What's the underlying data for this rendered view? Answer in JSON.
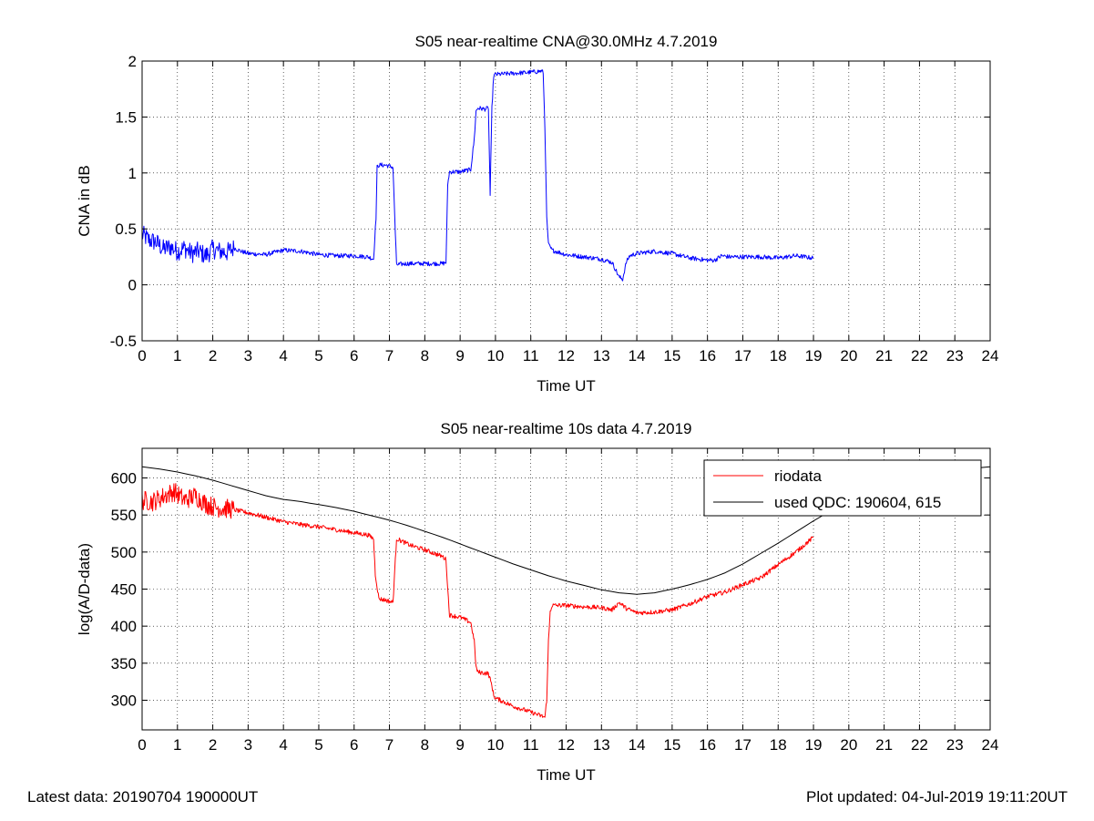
{
  "footer": {
    "latest": "Latest data: 20190704 190000UT",
    "updated": "Plot updated: 04-Jul-2019 19:11:20UT"
  },
  "chart_data": [
    {
      "type": "line",
      "title": "S05 near-realtime CNA@30.0MHz 4.7.2019",
      "xlabel": "Time UT",
      "ylabel": "CNA in dB",
      "xlim": [
        0,
        24
      ],
      "ylim": [
        -0.5,
        2
      ],
      "xticks": [
        0,
        1,
        2,
        3,
        4,
        5,
        6,
        7,
        8,
        9,
        10,
        11,
        12,
        13,
        14,
        15,
        16,
        17,
        18,
        19,
        20,
        21,
        22,
        23,
        24
      ],
      "yticks": [
        -0.5,
        0,
        0.5,
        1,
        1.5,
        2
      ],
      "ytick_labels": [
        "-0.5",
        "0",
        "0.5",
        "1",
        "1.5",
        "2"
      ],
      "grid": true,
      "series": [
        {
          "color": "#0000ff",
          "x": [
            0,
            0.2,
            0.4,
            0.6,
            0.8,
            1.0,
            1.2,
            1.4,
            1.6,
            1.8,
            2.0,
            2.2,
            2.4,
            2.6,
            2.8,
            3.0,
            3.5,
            4.0,
            4.5,
            5.0,
            5.5,
            6.0,
            6.4,
            6.55,
            6.62,
            6.65,
            6.7,
            6.9,
            7.1,
            7.15,
            7.2,
            7.5,
            8.0,
            8.5,
            8.6,
            8.65,
            8.7,
            9.0,
            9.3,
            9.4,
            9.45,
            9.5,
            9.7,
            9.8,
            9.85,
            9.9,
            9.95,
            10.0,
            10.5,
            11.0,
            11.3,
            11.35,
            11.4,
            11.45,
            11.5,
            11.6,
            12.0,
            12.5,
            13.0,
            13.3,
            13.5,
            13.6,
            13.7,
            13.8,
            14.0,
            14.5,
            15.0,
            15.5,
            16.0,
            16.2,
            16.4,
            16.6,
            16.8,
            17.0,
            17.5,
            18.0,
            18.5,
            19.0
          ],
          "y": [
            0.45,
            0.4,
            0.38,
            0.32,
            0.34,
            0.3,
            0.33,
            0.28,
            0.3,
            0.26,
            0.32,
            0.3,
            0.29,
            0.33,
            0.3,
            0.28,
            0.27,
            0.31,
            0.3,
            0.27,
            0.26,
            0.26,
            0.25,
            0.23,
            0.6,
            1.05,
            1.07,
            1.07,
            1.05,
            0.6,
            0.18,
            0.19,
            0.19,
            0.19,
            0.2,
            0.9,
            1.01,
            1.01,
            1.03,
            1.3,
            1.55,
            1.58,
            1.57,
            1.58,
            0.8,
            1.58,
            1.87,
            1.88,
            1.89,
            1.9,
            1.91,
            1.9,
            1.4,
            0.6,
            0.36,
            0.31,
            0.27,
            0.25,
            0.23,
            0.2,
            0.07,
            0.05,
            0.2,
            0.26,
            0.28,
            0.3,
            0.28,
            0.24,
            0.22,
            0.22,
            0.26,
            0.25,
            0.25,
            0.25,
            0.25,
            0.24,
            0.26,
            0.24
          ]
        }
      ]
    },
    {
      "type": "line",
      "title": "S05 near-realtime 10s data 4.7.2019",
      "xlabel": "Time UT",
      "ylabel": "log(A/D-data)",
      "xlim": [
        0,
        24
      ],
      "ylim": [
        260,
        640
      ],
      "xticks": [
        0,
        1,
        2,
        3,
        4,
        5,
        6,
        7,
        8,
        9,
        10,
        11,
        12,
        13,
        14,
        15,
        16,
        17,
        18,
        19,
        20,
        21,
        22,
        23,
        24
      ],
      "yticks": [
        300,
        350,
        400,
        450,
        500,
        550,
        600
      ],
      "ytick_labels": [
        "300",
        "350",
        "400",
        "450",
        "500",
        "550",
        "600"
      ],
      "grid": true,
      "legend": "top-right",
      "series": [
        {
          "name": "riodata",
          "color": "#ff0000",
          "x": [
            0,
            0.3,
            0.6,
            0.9,
            1.2,
            1.5,
            1.8,
            2.1,
            2.5,
            3.0,
            3.5,
            4.0,
            4.5,
            5.0,
            5.5,
            6.0,
            6.4,
            6.55,
            6.6,
            6.7,
            6.9,
            7.1,
            7.15,
            7.2,
            7.6,
            8.0,
            8.5,
            8.6,
            8.65,
            8.7,
            9.0,
            9.3,
            9.4,
            9.45,
            9.5,
            9.8,
            9.9,
            9.95,
            10.0,
            10.5,
            11.0,
            11.4,
            11.45,
            11.5,
            11.55,
            11.6,
            12.0,
            12.5,
            13.0,
            13.3,
            13.5,
            13.7,
            14.0,
            14.5,
            15.0,
            15.5,
            16.0,
            16.5,
            17.0,
            17.5,
            18.0,
            18.5,
            19.0
          ],
          "y": [
            570,
            568,
            575,
            582,
            570,
            576,
            565,
            560,
            558,
            553,
            547,
            541,
            537,
            534,
            530,
            526,
            523,
            518,
            470,
            437,
            435,
            432,
            475,
            518,
            509,
            503,
            494,
            490,
            450,
            415,
            412,
            405,
            380,
            345,
            338,
            336,
            320,
            306,
            303,
            292,
            284,
            277,
            300,
            380,
            420,
            428,
            428,
            426,
            425,
            422,
            432,
            424,
            418,
            419,
            422,
            430,
            440,
            446,
            456,
            465,
            483,
            500,
            520
          ]
        },
        {
          "name": "used QDC: 190604, 615",
          "color": "#000000",
          "x": [
            0,
            0.5,
            1.0,
            1.5,
            2.0,
            2.5,
            3.0,
            3.5,
            4.0,
            4.5,
            5.0,
            5.5,
            6.0,
            6.5,
            7.0,
            7.5,
            8.0,
            8.5,
            9.0,
            9.5,
            10.0,
            10.5,
            11.0,
            11.5,
            12.0,
            12.5,
            13.0,
            13.5,
            14.0,
            14.5,
            15.0,
            15.5,
            16.0,
            16.5,
            17.0,
            17.5,
            18.0,
            18.5,
            19.0,
            19.5,
            20.0,
            20.5,
            21.0,
            21.5,
            22.0,
            22.5,
            23.0,
            23.5,
            24.0
          ],
          "y": [
            615,
            612,
            608,
            603,
            597,
            590,
            583,
            576,
            571,
            568,
            564,
            560,
            555,
            549,
            543,
            536,
            528,
            520,
            511,
            502,
            493,
            484,
            476,
            468,
            461,
            455,
            449,
            445,
            443,
            445,
            450,
            456,
            463,
            472,
            484,
            498,
            512,
            527,
            542,
            556,
            569,
            581,
            591,
            599,
            605,
            609,
            611,
            613,
            615
          ]
        }
      ]
    }
  ]
}
